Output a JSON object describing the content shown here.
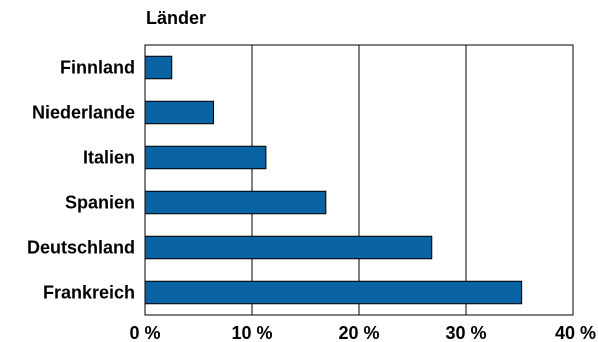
{
  "chart_data": {
    "type": "bar",
    "orientation": "horizontal",
    "title": "Länder",
    "categories": [
      "Frankreich",
      "Deutschland",
      "Spanien",
      "Italien",
      "Niederlande",
      "Finnland"
    ],
    "values": [
      35.2,
      26.8,
      16.9,
      11.3,
      6.4,
      2.5
    ],
    "unit": "%",
    "xlim": [
      0,
      40
    ],
    "xticks": [
      0,
      10,
      20,
      30,
      40
    ],
    "xtick_labels": [
      "0 %",
      "10 %",
      "20 %",
      "30 %",
      "40 %"
    ],
    "xlabel": "",
    "ylabel": "",
    "grid": "vertical",
    "bar_color": "#0a63a3",
    "bar_edge_color": "#000000"
  }
}
